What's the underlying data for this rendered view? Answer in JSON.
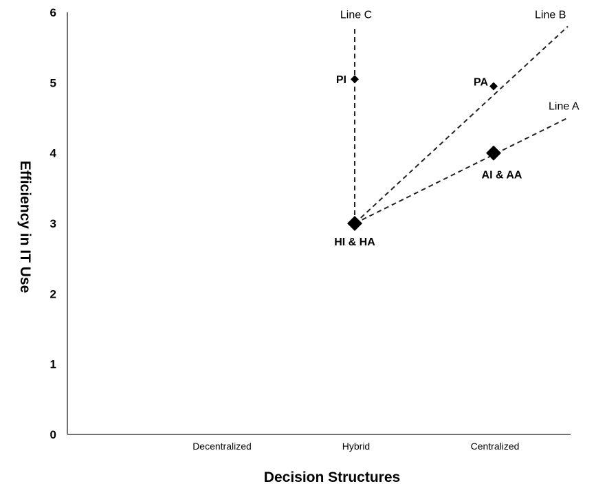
{
  "chart_data": {
    "type": "scatter",
    "title": "",
    "xlabel": "Decision Structures",
    "ylabel": "Efficiency in IT Use",
    "categories": [
      "Decentralized",
      "Hybrid",
      "Centralized"
    ],
    "ylim": [
      0,
      6
    ],
    "yticks": [
      0,
      1,
      2,
      3,
      4,
      5,
      6
    ],
    "grid": false,
    "legend": "none",
    "points": [
      {
        "label": "HI & HA",
        "x": "Hybrid",
        "y": 3,
        "marker": "large-diamond"
      },
      {
        "label": "PI",
        "x": "Hybrid",
        "y": 5.05,
        "marker": "small-diamond"
      },
      {
        "label": "PA",
        "x": "Centralized",
        "y": 4.95,
        "marker": "small-diamond"
      },
      {
        "label": "AI & AA",
        "x": "Centralized",
        "y": 4,
        "marker": "large-diamond"
      }
    ],
    "lines": [
      {
        "label": "Line C",
        "from": {
          "x": "Hybrid",
          "y": 3
        },
        "to": {
          "x": "Hybrid",
          "y": 5.8
        }
      },
      {
        "label": "Line B",
        "from": {
          "x": "Hybrid",
          "y": 3
        },
        "to": {
          "x": "Centralized",
          "y": 4.95
        },
        "extends_to": {
          "x_offset_categories": 0.5,
          "y": 5.8
        }
      },
      {
        "label": "Line A",
        "from": {
          "x": "Hybrid",
          "y": 3
        },
        "to": {
          "x": "Centralized",
          "y": 4
        },
        "extends_to": {
          "x_offset_categories": 0.5,
          "y": 4.5
        }
      }
    ]
  }
}
